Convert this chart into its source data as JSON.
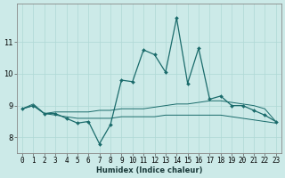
{
  "xlabel": "Humidex (Indice chaleur)",
  "ylabel": "",
  "background_color": "#cceae8",
  "line_color": "#1a6b6b",
  "grid_color": "#afd8d5",
  "x": [
    0,
    1,
    2,
    3,
    4,
    5,
    6,
    7,
    8,
    9,
    10,
    11,
    12,
    13,
    14,
    15,
    16,
    17,
    18,
    19,
    20,
    21,
    22,
    23
  ],
  "line1": [
    8.9,
    9.0,
    8.75,
    8.75,
    8.6,
    8.45,
    8.5,
    7.8,
    8.4,
    9.8,
    9.75,
    10.75,
    10.6,
    10.05,
    11.75,
    9.7,
    10.8,
    9.2,
    9.3,
    9.0,
    9.0,
    8.85,
    8.7,
    8.5
  ],
  "line2": [
    8.9,
    9.05,
    8.75,
    8.8,
    8.8,
    8.8,
    8.8,
    8.85,
    8.85,
    8.9,
    8.9,
    8.9,
    8.95,
    9.0,
    9.05,
    9.05,
    9.1,
    9.15,
    9.15,
    9.1,
    9.05,
    9.0,
    8.9,
    8.5
  ],
  "line3": [
    8.9,
    9.0,
    8.75,
    8.7,
    8.65,
    8.6,
    8.6,
    8.6,
    8.6,
    8.65,
    8.65,
    8.65,
    8.65,
    8.7,
    8.7,
    8.7,
    8.7,
    8.7,
    8.7,
    8.65,
    8.6,
    8.55,
    8.5,
    8.45
  ],
  "ylim": [
    7.5,
    12.2
  ],
  "yticks": [
    8,
    9,
    10,
    11
  ],
  "xlim": [
    -0.5,
    23.5
  ],
  "tick_fontsize": 5.5,
  "xlabel_fontsize": 6.0
}
